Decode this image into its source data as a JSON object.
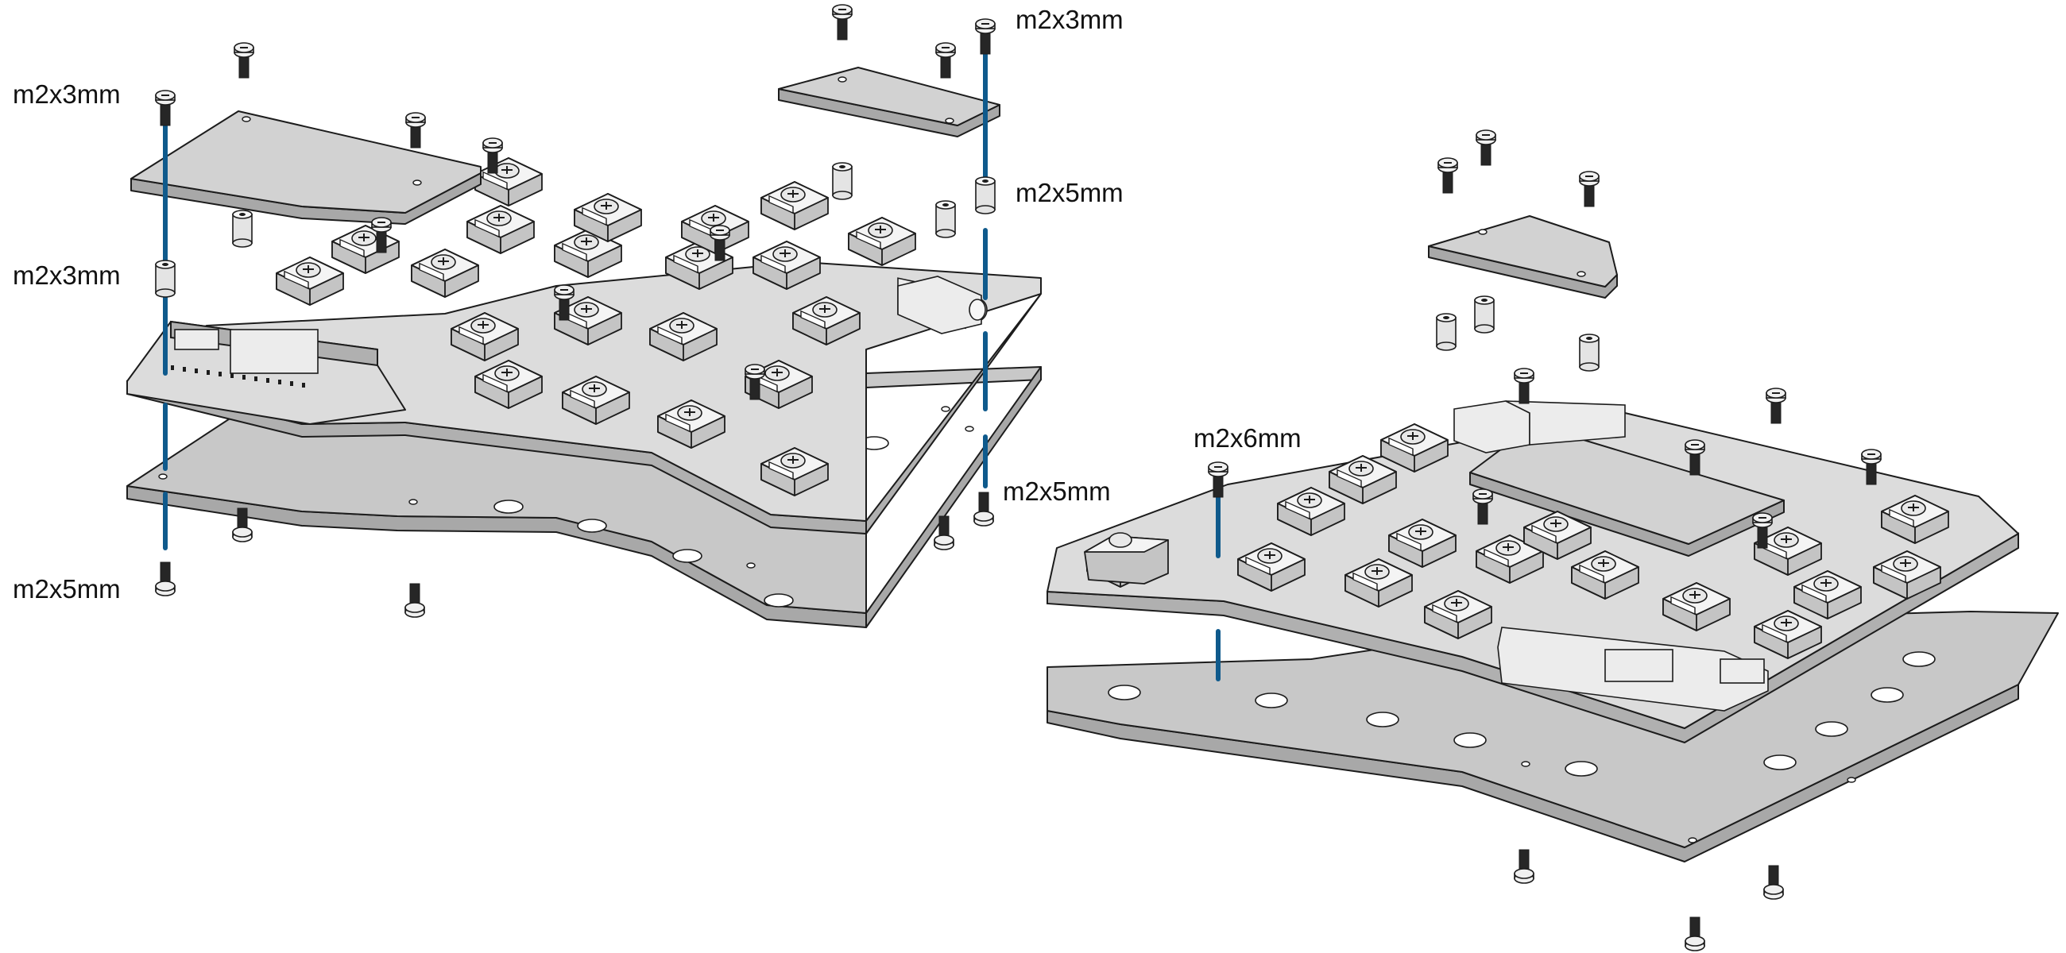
{
  "title": "",
  "accent_color": "#0f5a8c",
  "left_assembly": {
    "labels": {
      "top_left_screw": "m2x3mm",
      "left_spacer": "m2x3mm",
      "bottom_left_screw": "m2x5mm",
      "top_right_screw": "m2x3mm",
      "right_standoff": "m2x5mm",
      "bottom_right_screw": "m2x5mm"
    }
  },
  "right_assembly": {
    "labels": {
      "long_screw": "m2x6mm"
    }
  }
}
